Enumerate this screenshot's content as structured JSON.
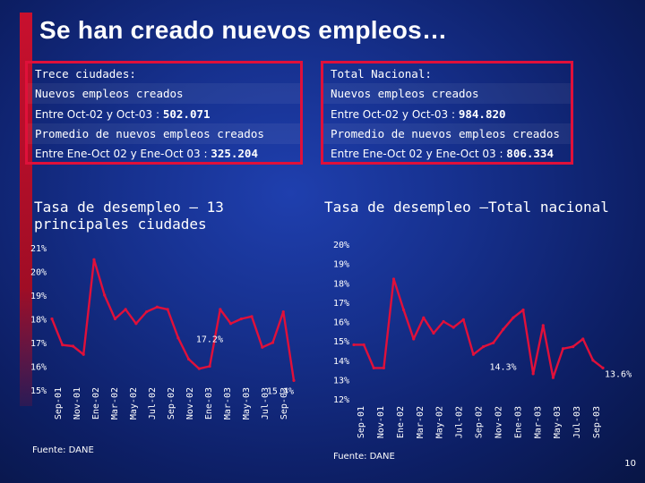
{
  "slide": {
    "title": "Se han creado nuevos empleos…",
    "page_number": "10"
  },
  "left_box": {
    "heading": "Trece ciudades:",
    "line1_label": "Nuevos empleos creados",
    "line2_prefix": "Entre Oct-02 y Oct-03 : ",
    "line2_value": "502.071",
    "line3_label": "Promedio de nuevos empleos creados",
    "line4_prefix": "Entre Ene-Oct 02 y Ene-Oct 03 : ",
    "line4_value": "325.204"
  },
  "right_box": {
    "heading": "Total Nacional:",
    "line1_label": "Nuevos empleos creados",
    "line2_prefix": "Entre Oct-02 y Oct-03 : ",
    "line2_value": "984.820",
    "line3_label": "Promedio de nuevos empleos creados",
    "line4_prefix": "Entre Ene-Oct 02 y Ene-Oct 03 : ",
    "line4_value": "806.334"
  },
  "left_chart_title": "Tasa de desempleo – 13\nprincipales ciudades",
  "right_chart_title": "Tasa de desempleo –Total nacional",
  "source_left": "Fuente: DANE",
  "source_right": "Fuente: DANE",
  "colors": {
    "line": "#e0103a",
    "accent_bar": "#c8102e",
    "box_border": "#e0103a"
  },
  "chart_data": [
    {
      "type": "line",
      "title": "Tasa de desempleo – 13 principales ciudades",
      "ylim": [
        15,
        21
      ],
      "y_ticks": [
        "15%",
        "16%",
        "17%",
        "18%",
        "19%",
        "20%",
        "21%"
      ],
      "x_tick_labels": [
        "Sep-01",
        "Nov-01",
        "Ene-02",
        "Mar-02",
        "May-02",
        "Jul-02",
        "Sep-02",
        "Nov-02",
        "Ene-03",
        "Mar-03",
        "May-03",
        "Jul-03",
        "Sep-03"
      ],
      "values": [
        18.0,
        16.9,
        16.85,
        16.5,
        20.5,
        19.0,
        18.0,
        18.4,
        17.8,
        18.3,
        18.5,
        18.4,
        17.2,
        16.3,
        15.9,
        16.0,
        18.4,
        17.8,
        18.0,
        18.1,
        16.8,
        17.0,
        18.3,
        15.4
      ],
      "annotations": [
        {
          "index": 12,
          "text": "17.2%"
        },
        {
          "index": 23,
          "text": "15.4%"
        }
      ],
      "grid": false
    },
    {
      "type": "line",
      "title": "Tasa de desempleo –Total nacional",
      "ylim": [
        12,
        20
      ],
      "y_ticks": [
        "12%",
        "13%",
        "14%",
        "15%",
        "16%",
        "17%",
        "18%",
        "19%",
        "20%"
      ],
      "x_tick_labels": [
        "Sep-01",
        "Nov-01",
        "Ene-02",
        "Mar-02",
        "May-02",
        "Jul-02",
        "Sep-02",
        "Nov-02",
        "Ene-03",
        "Mar-03",
        "May-03",
        "Jul-03",
        "Sep-03"
      ],
      "values": [
        14.8,
        14.8,
        13.6,
        13.6,
        18.2,
        16.6,
        15.1,
        16.2,
        15.4,
        16.0,
        15.7,
        16.1,
        14.3,
        14.7,
        14.9,
        15.6,
        16.2,
        16.6,
        13.3,
        15.8,
        13.1,
        14.6,
        14.7,
        15.1,
        14.0,
        13.6
      ],
      "annotations": [
        {
          "index": 12,
          "text": "14.3%"
        },
        {
          "index": 25,
          "text": "13.6%"
        }
      ],
      "grid": false
    }
  ]
}
